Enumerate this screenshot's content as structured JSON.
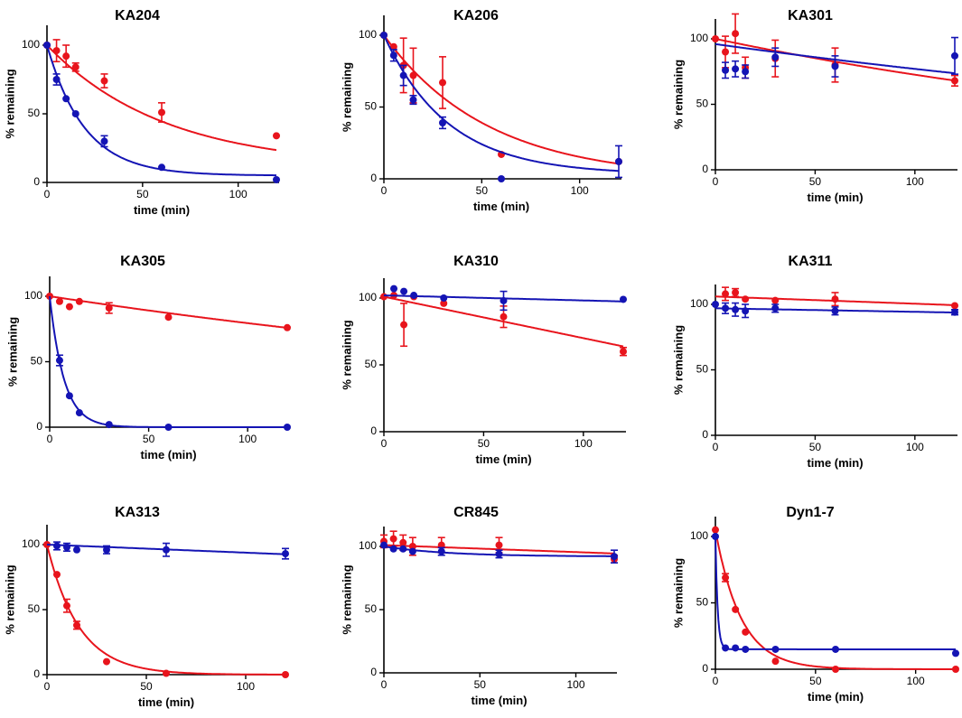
{
  "colors": {
    "series_a": "#e8141c",
    "series_b": "#1414b4"
  },
  "chart_data": [
    {
      "type": "scatter",
      "title": "KA204",
      "xlabel": "time (min)",
      "ylabel": "% remaining",
      "xlim": [
        0,
        120
      ],
      "ylim": [
        0,
        100
      ],
      "xticks": [
        0,
        50,
        100
      ],
      "yticks": [
        0,
        50,
        100
      ],
      "series": [
        {
          "name": "red",
          "color": "#e8141c",
          "x": [
            0,
            5,
            10,
            15,
            30,
            60,
            120
          ],
          "y": [
            100,
            96,
            92,
            84,
            74,
            51,
            34
          ],
          "err": [
            0,
            8,
            8,
            3,
            5,
            7,
            0
          ],
          "fit": {
            "model": "decay",
            "y0": 100,
            "plateau": 11,
            "k": 0.0163
          }
        },
        {
          "name": "blue",
          "color": "#1414b4",
          "x": [
            0,
            5,
            10,
            15,
            30,
            60,
            120
          ],
          "y": [
            100,
            75,
            61,
            50,
            30,
            11,
            2
          ],
          "err": [
            0,
            4,
            0,
            0,
            4,
            0,
            0
          ],
          "fit": {
            "model": "decay",
            "y0": 100,
            "plateau": 5,
            "k": 0.0509
          }
        }
      ]
    },
    {
      "type": "scatter",
      "title": "KA206",
      "xlabel": "time (min)",
      "ylabel": "% remaining",
      "xlim": [
        0,
        120
      ],
      "ylim": [
        0,
        100
      ],
      "xticks": [
        0,
        50,
        100
      ],
      "yticks": [
        0,
        50,
        100
      ],
      "series": [
        {
          "name": "red",
          "color": "#e8141c",
          "x": [
            0,
            5,
            10,
            15,
            30,
            60,
            120
          ],
          "y": [
            100,
            92,
            79,
            72,
            67,
            17,
            12
          ],
          "err": [
            0,
            0,
            19,
            19,
            18,
            0,
            0
          ],
          "fit": {
            "model": "decay",
            "y0": 100,
            "plateau": 0,
            "k": 0.0188
          }
        },
        {
          "name": "blue",
          "color": "#1414b4",
          "x": [
            0,
            5,
            10,
            15,
            30,
            60,
            120
          ],
          "y": [
            100,
            86,
            72,
            55,
            39,
            0,
            12
          ],
          "err": [
            0,
            4,
            7,
            3,
            4,
            0,
            11
          ],
          "fit": {
            "model": "decay",
            "y0": 100,
            "plateau": 3,
            "k": 0.0305
          }
        }
      ]
    },
    {
      "type": "scatter",
      "title": "KA301",
      "xlabel": "time (min)",
      "ylabel": "% remaining",
      "xlim": [
        0,
        120
      ],
      "ylim": [
        0,
        100
      ],
      "xticks": [
        0,
        50,
        100
      ],
      "yticks": [
        0,
        50,
        100
      ],
      "series": [
        {
          "name": "red",
          "color": "#e8141c",
          "x": [
            0,
            5,
            10,
            15,
            30,
            60,
            120
          ],
          "y": [
            100,
            90,
            104,
            78,
            85,
            80,
            68
          ],
          "err": [
            0,
            12,
            15,
            8,
            14,
            13,
            4
          ],
          "fit": {
            "model": "decay",
            "y0": 100,
            "plateau": 0,
            "k": 0.0032
          }
        },
        {
          "name": "blue",
          "color": "#1414b4",
          "x": [
            5,
            10,
            15,
            30,
            60,
            120
          ],
          "y": [
            76,
            77,
            75,
            86,
            79,
            87
          ],
          "err": [
            6,
            6,
            5,
            7,
            8,
            14
          ],
          "fit": {
            "model": "decay",
            "y0": 96,
            "plateau": 0,
            "k": 0.0022
          }
        }
      ]
    },
    {
      "type": "scatter",
      "title": "KA305",
      "xlabel": "time (min)",
      "ylabel": "% remaining",
      "xlim": [
        0,
        120
      ],
      "ylim": [
        0,
        100
      ],
      "xticks": [
        0,
        50,
        100
      ],
      "yticks": [
        0,
        50,
        100
      ],
      "series": [
        {
          "name": "red",
          "color": "#e8141c",
          "x": [
            0,
            5,
            10,
            15,
            30,
            60,
            120
          ],
          "y": [
            100,
            96,
            92,
            96,
            91,
            84,
            76
          ],
          "err": [
            0,
            0,
            0,
            0,
            4,
            0,
            0
          ],
          "fit": {
            "model": "decay",
            "y0": 100,
            "plateau": 0,
            "k": 0.0023
          }
        },
        {
          "name": "blue",
          "color": "#1414b4",
          "x": [
            5,
            10,
            15,
            30,
            60,
            120
          ],
          "y": [
            51,
            24,
            11,
            2,
            0,
            0
          ],
          "err": [
            4,
            0,
            0,
            0,
            0,
            0
          ],
          "fit": {
            "model": "decay",
            "y0": 100,
            "plateau": 0,
            "k": 0.138
          }
        }
      ]
    },
    {
      "type": "scatter",
      "title": "KA310",
      "xlabel": "time (min)",
      "ylabel": "% remaining",
      "xlim": [
        0,
        120
      ],
      "ylim": [
        0,
        100
      ],
      "xticks": [
        0,
        50,
        100
      ],
      "yticks": [
        0,
        50,
        100
      ],
      "series": [
        {
          "name": "red",
          "color": "#e8141c",
          "x": [
            0,
            5,
            10,
            15,
            30,
            60,
            120
          ],
          "y": [
            101,
            102,
            80,
            101,
            96,
            86,
            60
          ],
          "err": [
            0,
            0,
            16,
            0,
            0,
            8,
            3
          ],
          "fit": {
            "model": "linear",
            "y0": 101,
            "slope": -0.31
          }
        },
        {
          "name": "blue",
          "color": "#1414b4",
          "x": [
            5,
            10,
            15,
            30,
            60,
            120
          ],
          "y": [
            107,
            105,
            102,
            100,
            98,
            99
          ],
          "err": [
            0,
            0,
            0,
            0,
            7,
            0
          ],
          "fit": {
            "model": "linear",
            "y0": 102,
            "slope": -0.038
          }
        }
      ]
    },
    {
      "type": "scatter",
      "title": "KA311",
      "xlabel": "time (min)",
      "ylabel": "% remaining",
      "xlim": [
        0,
        120
      ],
      "ylim": [
        0,
        100
      ],
      "xticks": [
        0,
        50,
        100
      ],
      "yticks": [
        0,
        50,
        100
      ],
      "series": [
        {
          "name": "red",
          "color": "#e8141c",
          "x": [
            5,
            10,
            15,
            30,
            60,
            120
          ],
          "y": [
            108,
            109,
            104,
            103,
            104,
            99
          ],
          "err": [
            5,
            3,
            0,
            0,
            5,
            0
          ],
          "fit": {
            "model": "linear",
            "y0": 106,
            "slope": -0.055
          }
        },
        {
          "name": "blue",
          "color": "#1414b4",
          "x": [
            0,
            5,
            10,
            15,
            30,
            60,
            120
          ],
          "y": [
            100,
            97,
            96,
            95,
            97,
            95,
            94
          ],
          "err": [
            0,
            4,
            5,
            5,
            3,
            3,
            2
          ],
          "fit": {
            "model": "linear",
            "y0": 97,
            "slope": -0.027
          }
        }
      ]
    },
    {
      "type": "scatter",
      "title": "KA313",
      "xlabel": "time (min)",
      "ylabel": "% remaining",
      "xlim": [
        0,
        120
      ],
      "ylim": [
        0,
        100
      ],
      "xticks": [
        0,
        50,
        100
      ],
      "yticks": [
        0,
        50,
        100
      ],
      "series": [
        {
          "name": "red",
          "color": "#e8141c",
          "x": [
            0,
            5,
            10,
            15,
            30,
            60,
            120
          ],
          "y": [
            100,
            77,
            53,
            38,
            10,
            1,
            0
          ],
          "err": [
            0,
            0,
            5,
            3,
            0,
            0,
            0
          ],
          "fit": {
            "model": "decay",
            "y0": 100,
            "plateau": 0,
            "k": 0.062
          }
        },
        {
          "name": "blue",
          "color": "#1414b4",
          "x": [
            5,
            10,
            15,
            30,
            60,
            120
          ],
          "y": [
            99,
            98,
            96,
            96,
            96,
            93
          ],
          "err": [
            3,
            3,
            0,
            3,
            5,
            4
          ],
          "fit": {
            "model": "linear",
            "y0": 100,
            "slope": -0.062
          }
        }
      ]
    },
    {
      "type": "scatter",
      "title": "CR845",
      "xlabel": "time (min)",
      "ylabel": "% remaining",
      "xlim": [
        0,
        120
      ],
      "ylim": [
        0,
        100
      ],
      "xticks": [
        0,
        50,
        100
      ],
      "yticks": [
        0,
        50,
        100
      ],
      "series": [
        {
          "name": "red",
          "color": "#e8141c",
          "x": [
            0,
            5,
            10,
            15,
            30,
            60,
            120
          ],
          "y": [
            104,
            106,
            103,
            100,
            101,
            101,
            90
          ],
          "err": [
            5,
            6,
            6,
            7,
            6,
            6,
            3
          ],
          "fit": {
            "model": "linear",
            "y0": 101,
            "slope": -0.055
          }
        },
        {
          "name": "blue",
          "color": "#1414b4",
          "x": [
            0,
            5,
            10,
            15,
            30,
            60,
            120
          ],
          "y": [
            101,
            98,
            98,
            96,
            96,
            94,
            92
          ],
          "err": [
            0,
            0,
            0,
            0,
            3,
            3,
            5
          ],
          "fit": {
            "model": "decay",
            "y0": 100,
            "plateau": 92,
            "k": 0.03
          }
        }
      ]
    },
    {
      "type": "scatter",
      "title": "Dyn1-7",
      "xlabel": "time (min)",
      "ylabel": "% remaining",
      "xlim": [
        0,
        120
      ],
      "ylim": [
        0,
        100
      ],
      "xticks": [
        0,
        50,
        100
      ],
      "yticks": [
        0,
        50,
        100
      ],
      "series": [
        {
          "name": "red",
          "color": "#e8141c",
          "x": [
            0,
            5,
            10,
            15,
            30,
            60,
            120
          ],
          "y": [
            105,
            69,
            45,
            28,
            6,
            0,
            0
          ],
          "err": [
            0,
            3,
            0,
            0,
            0,
            0,
            0
          ],
          "fit": {
            "model": "decay",
            "y0": 105,
            "plateau": 0,
            "k": 0.078
          }
        },
        {
          "name": "blue",
          "color": "#1414b4",
          "x": [
            0,
            5,
            10,
            15,
            30,
            60,
            120
          ],
          "y": [
            100,
            16,
            16,
            15,
            15,
            15,
            12
          ],
          "err": [
            0,
            0,
            0,
            0,
            0,
            0,
            0
          ],
          "fit": {
            "model": "decay",
            "y0": 100,
            "plateau": 15,
            "k": 0.9
          }
        }
      ]
    }
  ]
}
